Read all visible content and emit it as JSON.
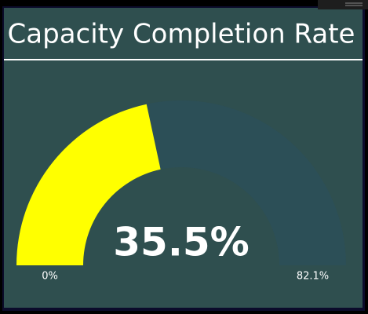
{
  "chart_data": {
    "type": "gauge",
    "title": "Capacity Completion Rate",
    "values": [
      35.5
    ],
    "value_labels": [
      "35.5%"
    ],
    "ylim": [
      0,
      82.1
    ],
    "yticks": [
      {
        "value": 0,
        "label": "0%"
      },
      {
        "value": 82.1,
        "label": "82.1%"
      }
    ],
    "color": "#ffff00",
    "track_color": "#2c4f57",
    "background": "#2f4f4f"
  }
}
